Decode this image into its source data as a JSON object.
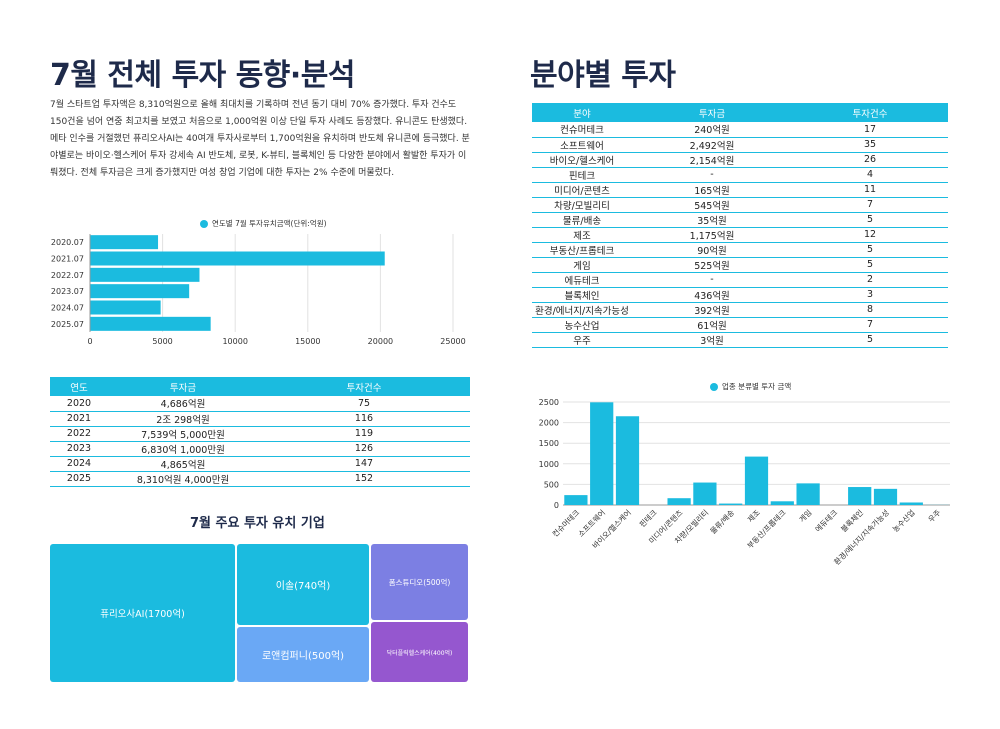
{
  "left": {
    "title": "7월 전체 투자 동향·분석",
    "paragraph": "7월 스타트업 투자액은 8,310억원으로 올해 최대치를 기록하며 전년 동기 대비 70% 증가했다. 투자 건수도 150건을 넘어 연중 최고치를 보였고 처음으로 1,000억원 이상 단일 투자 사례도 등장했다. 유니콘도 탄생했다. 메타 인수를 거절했던 퓨리오사AI는 40여개 투자사로부터 1,700억원을 유치하며 반도체 유니콘에 등극했다. 분야별로는 바이오·헬스케어 투자 강세속 AI 반도체, 로봇, K-뷰티, 블록체인 등 다양한 분야에서 활발한 투자가 이뤄졌다. 전체 투자금은 크게 증가했지만 여성 창업 기업에 대한 투자는 2% 수준에 머물렀다.",
    "yearly_table": {
      "headers": [
        "연도",
        "투자금",
        "투자건수"
      ],
      "rows": [
        [
          "2020",
          "4,686억원",
          "75"
        ],
        [
          "2021",
          "2조 298억원",
          "116"
        ],
        [
          "2022",
          "7,539억 5,000만원",
          "119"
        ],
        [
          "2023",
          "6,830억 1,000만원",
          "126"
        ],
        [
          "2024",
          "4,865억원",
          "147"
        ],
        [
          "2025",
          "8,310억원 4,000만원",
          "152"
        ]
      ]
    },
    "treemap_title": "7월 주요 투자 유치 기업",
    "treemap": [
      {
        "label": "퓨리오사AI(1700억)",
        "value": 1700,
        "color": "#1bbbdf"
      },
      {
        "label": "이솔(740억)",
        "value": 740,
        "color": "#1bbbdf"
      },
      {
        "label": "로앤컴퍼니(500억)",
        "value": 500,
        "color": "#6aa8f5"
      },
      {
        "label": "폼스튜디오(500억)",
        "value": 500,
        "color": "#7c7fe3"
      },
      {
        "label": "닥터플릭헬스케어(400억)",
        "value": 400,
        "color": "#9557cf"
      }
    ]
  },
  "right": {
    "title": "분야별 투자",
    "sector_table": {
      "headers": [
        "분야",
        "투자금",
        "투자건수"
      ],
      "rows": [
        [
          "컨슈머테크",
          "240억원",
          "17"
        ],
        [
          "소프트웨어",
          "2,492억원",
          "35"
        ],
        [
          "바이오/헬스케어",
          "2,154억원",
          "26"
        ],
        [
          "핀테크",
          "-",
          "4"
        ],
        [
          "미디어/콘텐츠",
          "165억원",
          "11"
        ],
        [
          "차량/모빌리티",
          "545억원",
          "7"
        ],
        [
          "물류/배송",
          "35억원",
          "5"
        ],
        [
          "제조",
          "1,175억원",
          "12"
        ],
        [
          "부동산/프롭테크",
          "90억원",
          "5"
        ],
        [
          "게임",
          "525억원",
          "5"
        ],
        [
          "에듀테크",
          "-",
          "2"
        ],
        [
          "블록체인",
          "436억원",
          "3"
        ],
        [
          "환경/에너지/지속가능성",
          "392억원",
          "8"
        ],
        [
          "농수산업",
          "61억원",
          "7"
        ],
        [
          "우주",
          "3억원",
          "5"
        ]
      ]
    }
  },
  "chart_data": [
    {
      "type": "bar",
      "orientation": "horizontal",
      "title": "",
      "legend": "연도별 7월 투자유치금액(단위:억원)",
      "legend_position": "top",
      "categories": [
        "2020.07",
        "2021.07",
        "2022.07",
        "2023.07",
        "2024.07",
        "2025.07"
      ],
      "values": [
        4686,
        20298,
        7540,
        6830,
        4865,
        8310
      ],
      "xlim": [
        0,
        25000
      ],
      "xticks": [
        0,
        5000,
        10000,
        15000,
        20000,
        25000
      ],
      "color": "#1bbbdf",
      "grid": true
    },
    {
      "type": "bar",
      "orientation": "vertical",
      "title": "",
      "legend": "업종 분류별 투자 금액",
      "legend_position": "top",
      "categories": [
        "컨슈머테크",
        "소프트웨어",
        "바이오/헬스케어",
        "핀테크",
        "미디어/콘텐츠",
        "차량/모빌리티",
        "물류/배송",
        "제조",
        "부동산/프롭테크",
        "게임",
        "에듀테크",
        "블록체인",
        "환경/에너지/지속가능성",
        "농수산업",
        "우주"
      ],
      "values": [
        240,
        2492,
        2154,
        0,
        165,
        545,
        35,
        1175,
        90,
        525,
        0,
        436,
        392,
        61,
        3
      ],
      "ylim": [
        0,
        2500
      ],
      "yticks": [
        0,
        500,
        1000,
        1500,
        2000,
        2500
      ],
      "color": "#1bbbdf",
      "grid": true
    }
  ]
}
